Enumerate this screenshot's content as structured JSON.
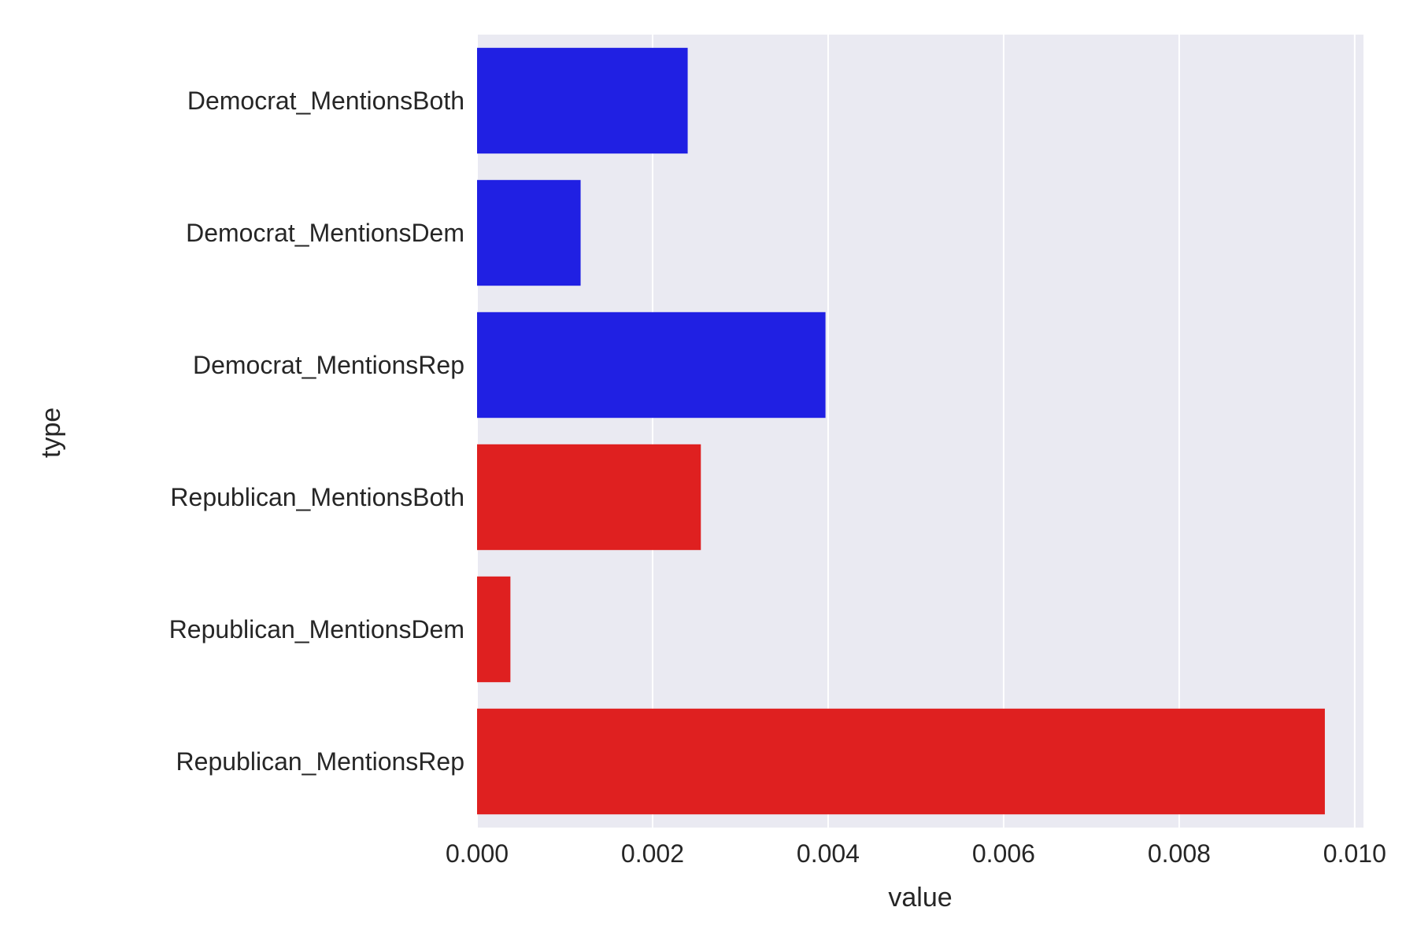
{
  "chart_data": {
    "type": "bar",
    "orientation": "horizontal",
    "categories": [
      "Democrat_MentionsBoth",
      "Democrat_MentionsDem",
      "Democrat_MentionsRep",
      "Republican_MentionsBoth",
      "Republican_MentionsDem",
      "Republican_MentionsRep"
    ],
    "values": [
      0.0024,
      0.00118,
      0.00397,
      0.00255,
      0.00038,
      0.00966
    ],
    "bar_colors": [
      "#2020e3",
      "#2020e3",
      "#2020e3",
      "#df2020",
      "#df2020",
      "#df2020"
    ],
    "xlabel": "value",
    "ylabel": "type",
    "xlim": [
      0,
      0.0101
    ],
    "xticks": [
      0,
      0.002,
      0.004,
      0.006,
      0.008,
      0.01
    ],
    "xtick_labels": [
      "0.000",
      "0.002",
      "0.004",
      "0.006",
      "0.008",
      "0.010"
    ],
    "grid": true,
    "background": "#eaeaf2",
    "grid_color": "#ffffff"
  }
}
